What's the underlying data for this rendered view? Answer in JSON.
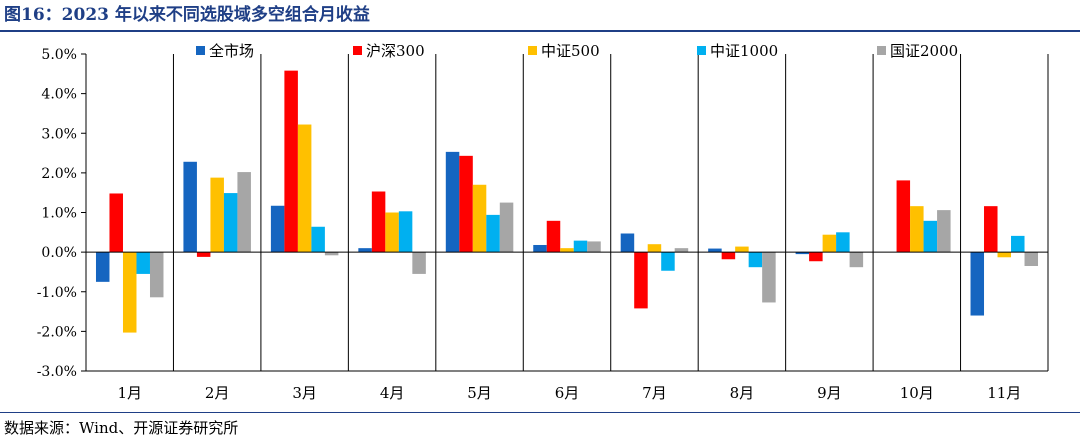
{
  "title": "图16：2023 年以来不同选股域多空组合月收益",
  "source": "数据来源：Wind、开源证券研究所",
  "chart_data": {
    "type": "bar",
    "categories": [
      "1月",
      "2月",
      "3月",
      "4月",
      "5月",
      "6月",
      "7月",
      "8月",
      "9月",
      "10月",
      "11月"
    ],
    "series": [
      {
        "name": "全市场",
        "color": "#1565c0",
        "values": [
          -0.75,
          2.28,
          1.17,
          0.1,
          2.53,
          0.18,
          0.47,
          0.09,
          -0.05,
          0.0,
          -1.6
        ]
      },
      {
        "name": "沪深300",
        "color": "#ff0000",
        "values": [
          1.48,
          -0.12,
          4.58,
          1.53,
          2.43,
          0.79,
          -1.42,
          -0.18,
          -0.23,
          1.81,
          1.16
        ]
      },
      {
        "name": "中证500",
        "color": "#ffc000",
        "values": [
          -2.03,
          1.88,
          3.22,
          1.0,
          1.7,
          0.1,
          0.2,
          0.14,
          0.44,
          1.16,
          -0.13
        ]
      },
      {
        "name": "中证1000",
        "color": "#00b0f0",
        "values": [
          -0.55,
          1.49,
          0.64,
          1.03,
          0.94,
          0.29,
          -0.47,
          -0.38,
          0.5,
          0.79,
          0.41
        ]
      },
      {
        "name": "国证2000",
        "color": "#a6a6a6",
        "values": [
          -1.14,
          2.02,
          -0.08,
          -0.55,
          1.25,
          0.27,
          0.1,
          -1.27,
          -0.38,
          1.06,
          -0.35
        ]
      }
    ],
    "y_ticks": [
      "-3.0%",
      "-2.0%",
      "-1.0%",
      "0.0%",
      "1.0%",
      "2.0%",
      "3.0%",
      "4.0%",
      "5.0%"
    ],
    "ylim": [
      -3,
      5
    ],
    "y_unit": "%",
    "legend_position": "top",
    "category_separators": true
  }
}
